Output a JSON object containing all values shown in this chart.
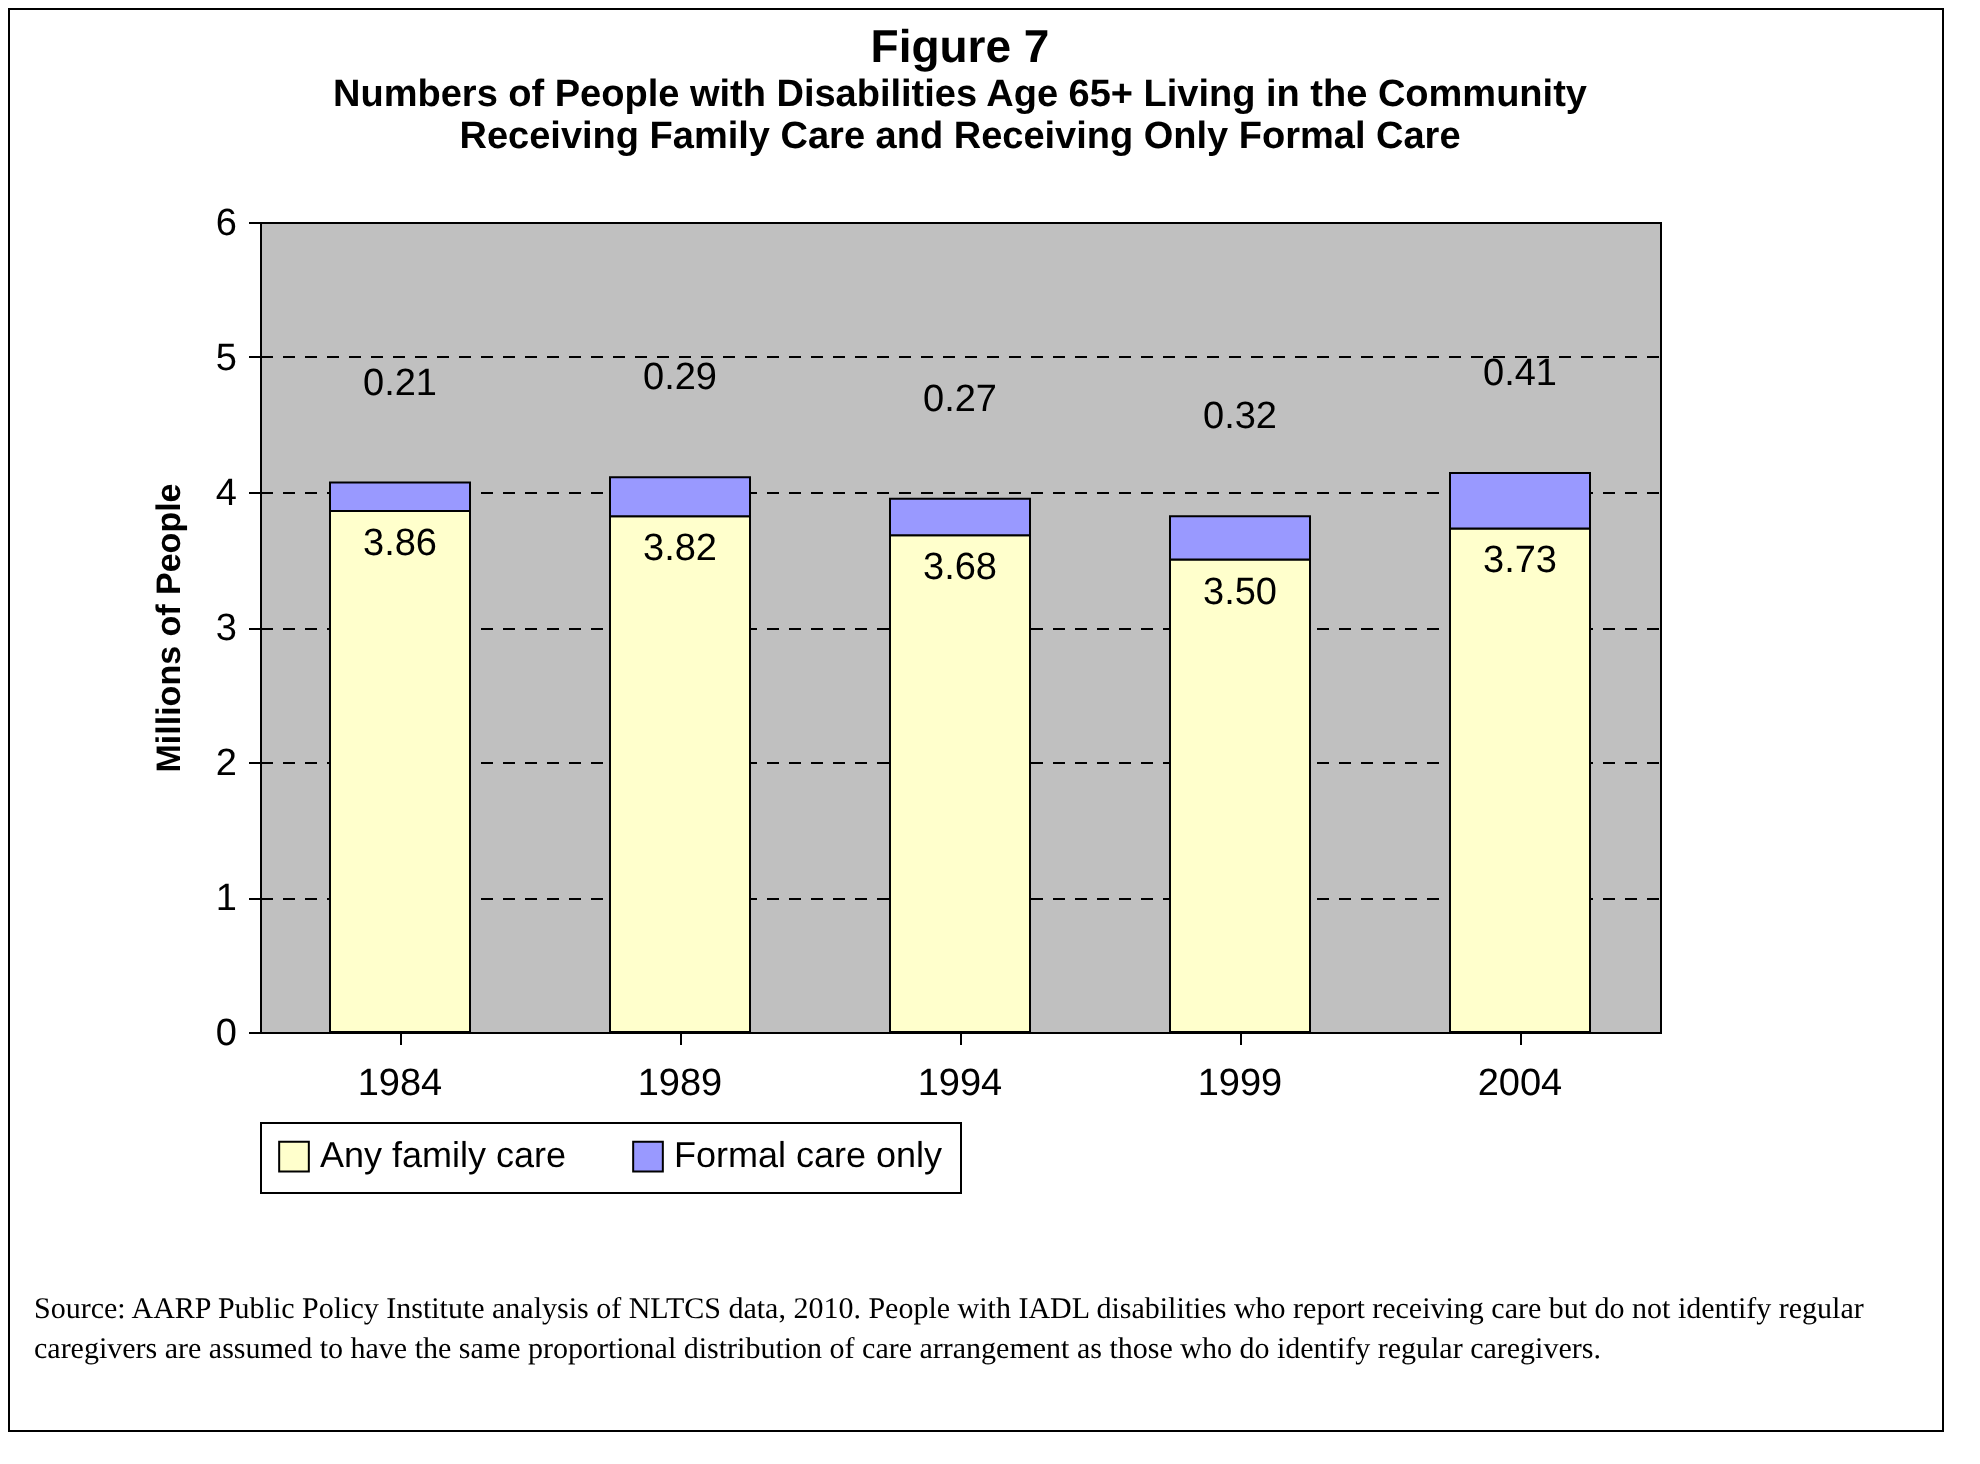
{
  "chart_data": {
    "type": "bar",
    "title": "Figure 7",
    "subtitle": "Numbers of People with Disabilities Age 65+ Living in the Community Receiving Family Care and Receiving Only Formal Care",
    "ylabel": "Millions of People",
    "categories": [
      "1984",
      "1989",
      "1994",
      "1999",
      "2004"
    ],
    "series": [
      {
        "name": "Any family care",
        "color": "#ffffcc",
        "values": [
          3.86,
          3.82,
          3.68,
          3.5,
          3.73
        ],
        "value_labels": [
          "3.86",
          "3.82",
          "3.68",
          "3.50",
          "3.73"
        ]
      },
      {
        "name": "Formal care only",
        "color": "#9999ff",
        "values": [
          0.21,
          0.29,
          0.27,
          0.32,
          0.41
        ],
        "value_labels": [
          "0.21",
          "0.29",
          "0.27",
          "0.32",
          "0.41"
        ]
      }
    ],
    "stacked": true,
    "ylim": [
      0,
      6
    ],
    "yticks": [
      0,
      1,
      2,
      3,
      4,
      5,
      6
    ],
    "grid": "y",
    "legend": "bottom",
    "annotations": [
      "Source: AARP Public Policy Institute analysis of NLTCS data, 2010. People with IADL disabilities who report receiving care but do not identify regular caregivers are assumed to have the same proportional distribution of care arrangement as those who do identify regular caregivers."
    ]
  }
}
